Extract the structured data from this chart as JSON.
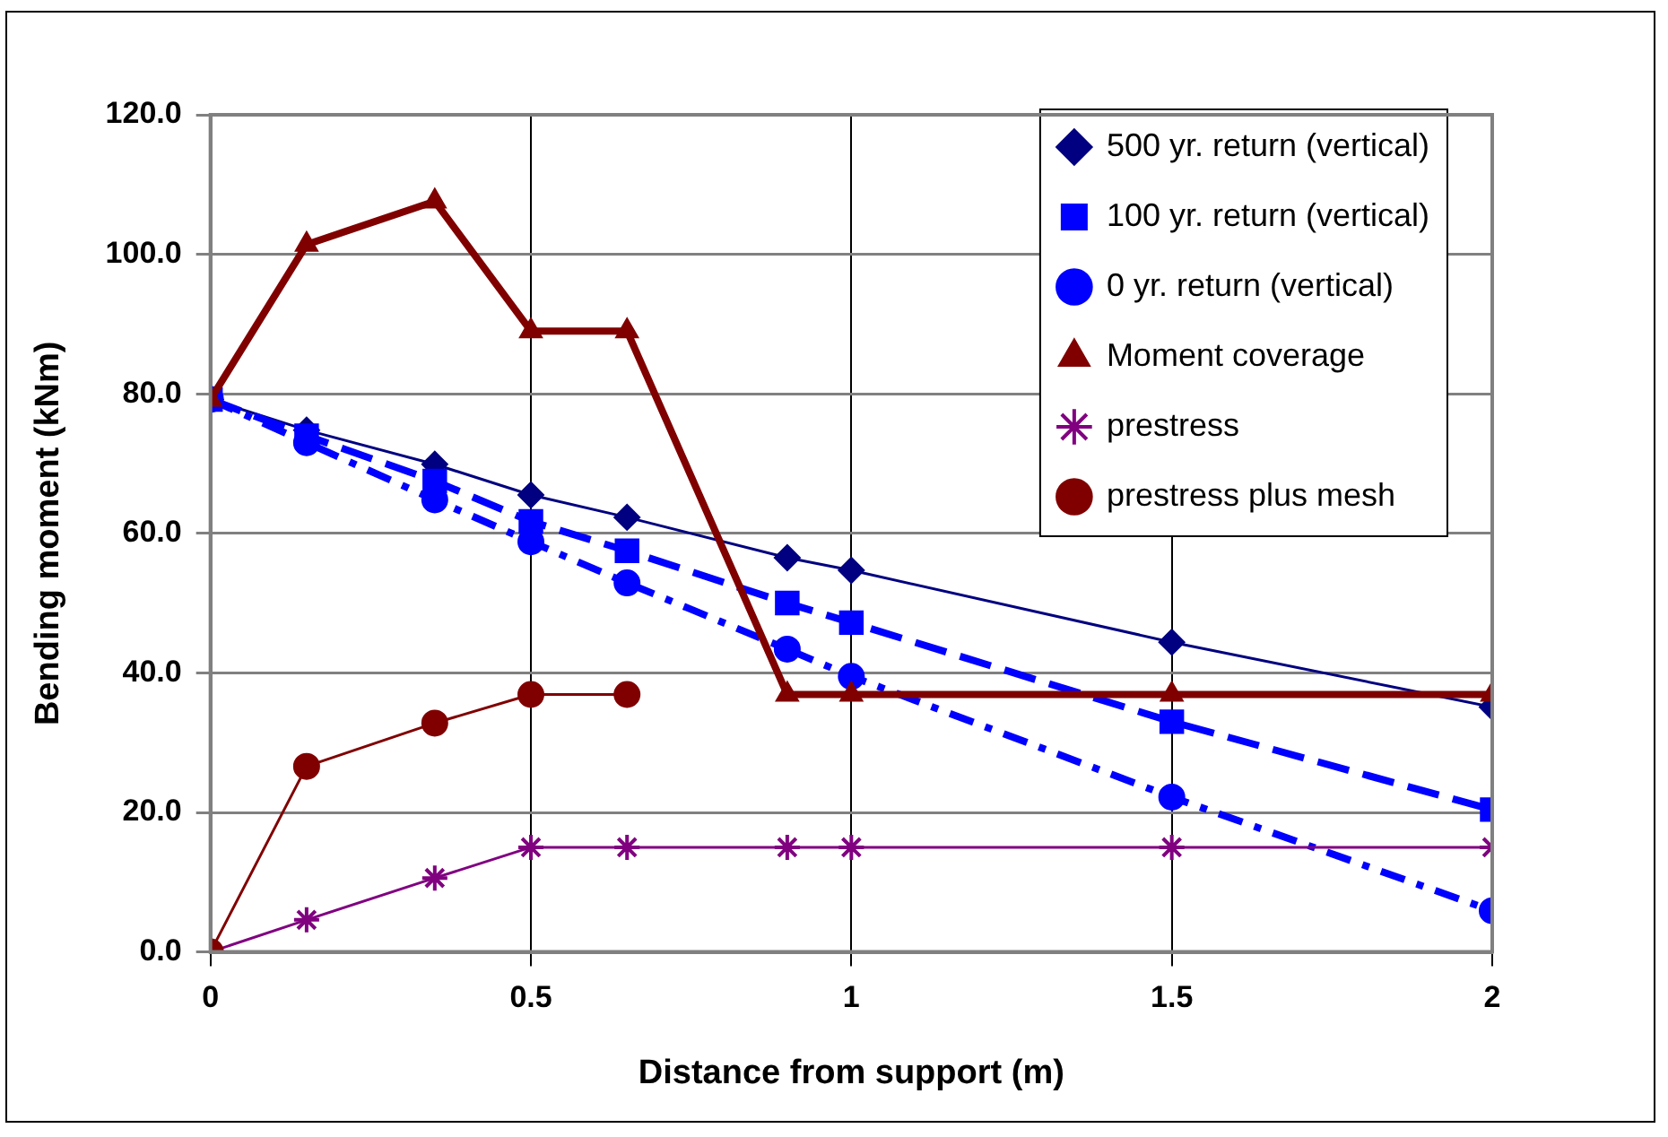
{
  "chart_data": {
    "type": "line",
    "xlabel": "Distance from support (m)",
    "ylabel": "Bending moment (kNm)",
    "x": [
      0,
      0.15,
      0.35,
      0.5,
      0.65,
      0.9,
      1,
      1.5,
      2
    ],
    "series": [
      {
        "name": "500 yr. return (vertical)",
        "color": "#000080",
        "marker": "diamond",
        "line_style": "solid",
        "values": [
          79.2,
          74.8,
          69.9,
          65.5,
          62.3,
          56.5,
          54.7,
          44.4,
          35.1
        ]
      },
      {
        "name": "100 yr. return (vertical)",
        "color": "#0000ff",
        "marker": "square",
        "line_style": "dashed",
        "values": [
          79.2,
          74,
          67.5,
          61.7,
          57.5,
          50,
          47.2,
          33,
          20.4
        ]
      },
      {
        "name": "0 yr. return (vertical)",
        "color": "#0000ff",
        "marker": "circle",
        "line_style": "dotted",
        "values": [
          79.2,
          73,
          64.8,
          58.8,
          52.9,
          43.4,
          39.5,
          22.2,
          5.9
        ]
      },
      {
        "name": "Moment coverage",
        "color": "#800000",
        "marker": "triangle",
        "line_style": "solid",
        "values": [
          79.2,
          101.4,
          107.6,
          89,
          89,
          36.9,
          36.9,
          36.9,
          36.9
        ]
      },
      {
        "name": "prestress",
        "color": "#800080",
        "marker": "cross",
        "line_style": "solid",
        "values": [
          0,
          4.6,
          10.6,
          15,
          15,
          15,
          15,
          15,
          15
        ]
      },
      {
        "name": "prestress plus mesh",
        "color": "#800000",
        "marker": "circle",
        "line_style": "solid",
        "values": [
          0,
          26.6,
          32.8,
          36.9,
          36.9,
          null,
          null,
          null,
          null
        ]
      }
    ],
    "xlim": [
      0,
      2
    ],
    "xticks": [
      0,
      0.5,
      1,
      1.5,
      2
    ],
    "ylim": [
      0,
      120
    ],
    "yticks": [
      {
        "value": 0,
        "label": "0.0"
      },
      {
        "value": 20,
        "label": "20.0"
      },
      {
        "value": 40,
        "label": "40.0"
      },
      {
        "value": 60,
        "label": "60.0"
      },
      {
        "value": 80,
        "label": "80.0"
      },
      {
        "value": 100,
        "label": "100.0"
      },
      {
        "value": 120,
        "label": "120.0"
      }
    ],
    "grid": true,
    "legend": "top right"
  }
}
